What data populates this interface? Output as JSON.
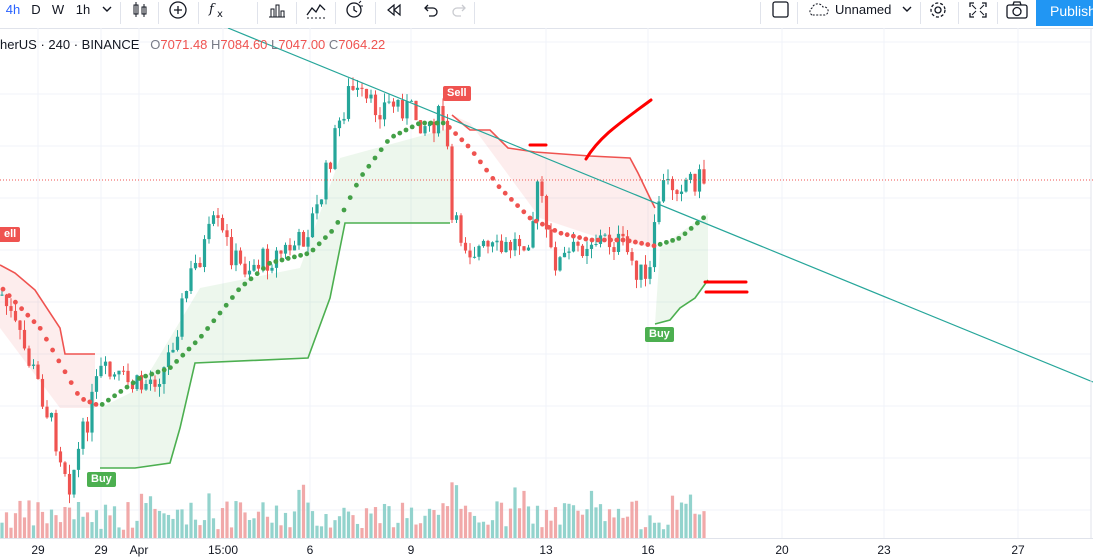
{
  "toolbar": {
    "interval_short": "4h",
    "interval_d": "D",
    "interval_w": "W",
    "interval_1h": "1h",
    "layout_name": "Unnamed",
    "publish_label": "Publish",
    "icons": [
      "chevron-down-icon",
      "candles-icon",
      "plus-circle-icon",
      "fx-icon",
      "bar-chart-icon",
      "indicators-icon",
      "alert-icon",
      "replay-icon",
      "undo-icon",
      "redo-icon",
      "square-icon",
      "cloud-icon",
      "gear-icon",
      "fullscreen-icon",
      "camera-icon"
    ]
  },
  "legend": {
    "symbol": "herUS · 240 · BINANCE",
    "o_key": "O",
    "o_val": "7071.48",
    "h_key": "H",
    "h_val": "7084.60",
    "l_key": "L",
    "l_val": "7047.00",
    "c_key": "C",
    "c_val": "7064.22"
  },
  "signals": {
    "sell_main": "Sell",
    "sell_left": "ell",
    "buy_left": "Buy",
    "buy_right": "Buy"
  },
  "time_axis": [
    "29",
    "29",
    "Apr",
    "15:00",
    "6",
    "9",
    "13",
    "16",
    "20",
    "23",
    "27"
  ],
  "colors": {
    "up": "#26a69a",
    "down": "#ef5350",
    "stop_up": "#4caf50",
    "stop_down": "#ef5350",
    "trendline": "#26a69a",
    "annotation": "#ff0000",
    "accent": "#2962ff"
  }
}
